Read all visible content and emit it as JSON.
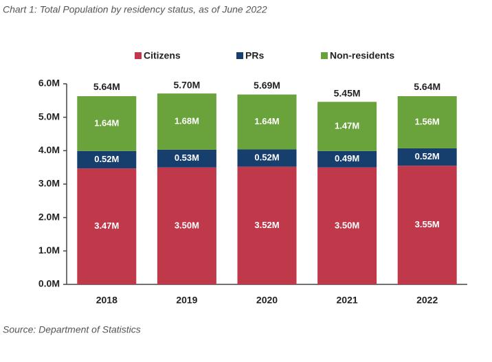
{
  "chart_data": {
    "type": "stacked_bar",
    "title": "Chart 1: Total Population by residency status, as of June 2022",
    "source": "Source: Department of Statistics",
    "categories": [
      "2018",
      "2019",
      "2020",
      "2021",
      "2022"
    ],
    "series": [
      {
        "name": "Citizens",
        "color": "#c0394b",
        "values": [
          3.47,
          3.5,
          3.52,
          3.5,
          3.55
        ],
        "value_labels": [
          "3.47M",
          "3.50M",
          "3.52M",
          "3.50M",
          "3.55M"
        ]
      },
      {
        "name": "PRs",
        "color": "#173f6e",
        "values": [
          0.52,
          0.53,
          0.52,
          0.49,
          0.52
        ],
        "value_labels": [
          "0.52M",
          "0.53M",
          "0.52M",
          "0.49M",
          "0.52M"
        ]
      },
      {
        "name": "Non-residents",
        "color": "#6aa23c",
        "values": [
          1.64,
          1.68,
          1.64,
          1.47,
          1.56
        ],
        "value_labels": [
          "1.64M",
          "1.68M",
          "1.64M",
          "1.47M",
          "1.56M"
        ]
      }
    ],
    "totals": {
      "values": [
        5.64,
        5.7,
        5.69,
        5.45,
        5.64
      ],
      "value_labels": [
        "5.64M",
        "5.70M",
        "5.69M",
        "5.45M",
        "5.64M"
      ]
    },
    "ylim": [
      0,
      6
    ],
    "yticks": [
      {
        "value": 0,
        "label": "0.0M"
      },
      {
        "value": 1,
        "label": "1.0M"
      },
      {
        "value": 2,
        "label": "2.0M"
      },
      {
        "value": 3,
        "label": "3.0M"
      },
      {
        "value": 4,
        "label": "4.0M"
      },
      {
        "value": 5,
        "label": "5.0M"
      },
      {
        "value": 6,
        "label": "6.0M"
      }
    ],
    "grid": false
  }
}
